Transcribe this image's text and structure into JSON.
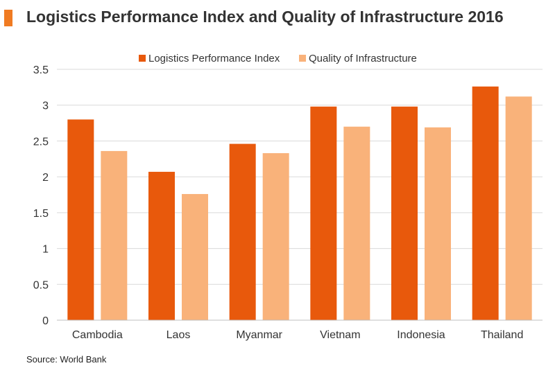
{
  "header": {
    "title": "Logistics Performance Index and Quality of Infrastructure 2016",
    "accent_color": "#f07b22"
  },
  "footer": {
    "source": "Source: World Bank"
  },
  "chart_data": {
    "type": "bar",
    "title": "Logistics Performance Index and Quality of Infrastructure 2016",
    "xlabel": "",
    "ylabel": "",
    "categories": [
      "Cambodia",
      "Laos",
      "Myanmar",
      "Vietnam",
      "Indonesia",
      "Thailand"
    ],
    "series": [
      {
        "name": "Logistics Performance Index",
        "color": "#e8590c",
        "values": [
          2.8,
          2.07,
          2.46,
          2.98,
          2.98,
          3.26
        ]
      },
      {
        "name": "Quality of Infrastructure",
        "color": "#f9b27a",
        "values": [
          2.36,
          1.76,
          2.33,
          2.7,
          2.69,
          3.12
        ]
      }
    ],
    "ylim": [
      0,
      3.5
    ],
    "yticks": [
      "0",
      "0.5",
      "1",
      "1.5",
      "2",
      "2.5",
      "3",
      "3.5"
    ],
    "grid": true,
    "legend_position": "top-center"
  }
}
